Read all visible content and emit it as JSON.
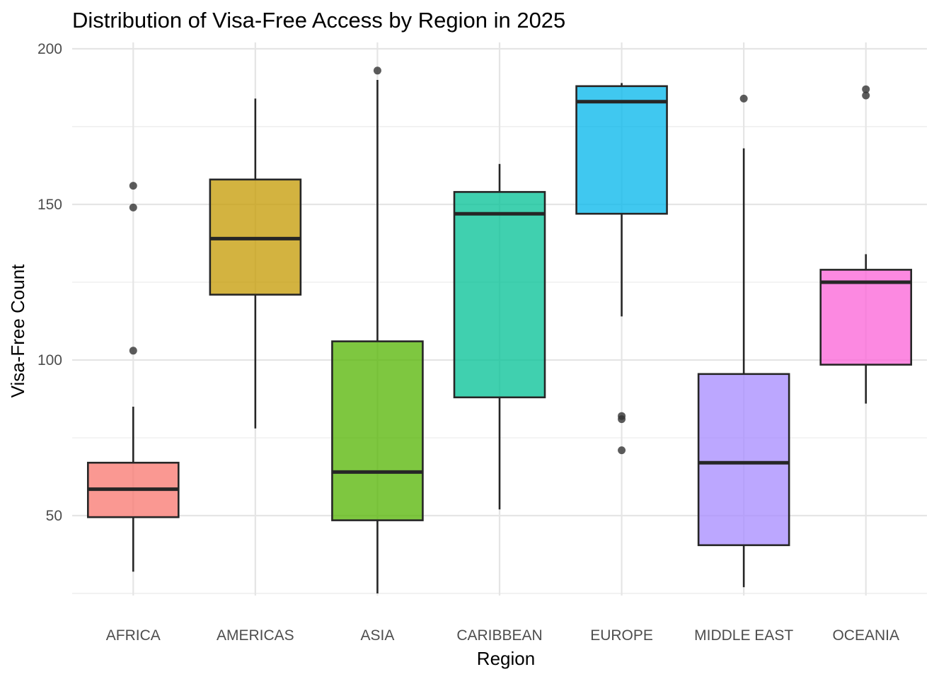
{
  "chart_data": {
    "type": "box",
    "title": "Distribution of Visa-Free Access by Region in 2025",
    "xlabel": "Region",
    "ylabel": "Visa-Free Count",
    "ylim": [
      17,
      204
    ],
    "yticks": [
      50,
      100,
      150,
      200
    ],
    "ytick_labels": [
      "50",
      "100",
      "150",
      "200"
    ],
    "grid": true,
    "legend": "none",
    "series": [
      {
        "category": "AFRICA",
        "color": "#F8766D",
        "min": 32,
        "q1": 49.5,
        "median": 58.5,
        "q3": 67,
        "max": 85,
        "outliers": [
          103,
          149,
          156
        ]
      },
      {
        "category": "AMERICAS",
        "color": "#C49A00",
        "min": 78,
        "q1": 121,
        "median": 139,
        "q3": 158,
        "max": 184,
        "outliers": []
      },
      {
        "category": "ASIA",
        "color": "#53B400",
        "min": 25,
        "q1": 48.5,
        "median": 64,
        "q3": 106,
        "max": 190,
        "outliers": [
          193
        ]
      },
      {
        "category": "CARIBBEAN",
        "color": "#00C094",
        "min": 52,
        "q1": 88,
        "median": 147,
        "q3": 154,
        "max": 163,
        "outliers": []
      },
      {
        "category": "EUROPE",
        "color": "#00B6EB",
        "min": 114,
        "q1": 147,
        "median": 183,
        "q3": 188,
        "max": 189,
        "outliers": [
          71,
          81,
          82
        ]
      },
      {
        "category": "MIDDLE EAST",
        "color": "#A58AFF",
        "min": 27,
        "q1": 40.5,
        "median": 67,
        "q3": 95.5,
        "max": 168,
        "outliers": [
          184
        ]
      },
      {
        "category": "OCEANIA",
        "color": "#FB61D7",
        "min": 86,
        "q1": 98.5,
        "median": 125,
        "q3": 129,
        "max": 134,
        "outliers": [
          185,
          187
        ]
      }
    ]
  }
}
